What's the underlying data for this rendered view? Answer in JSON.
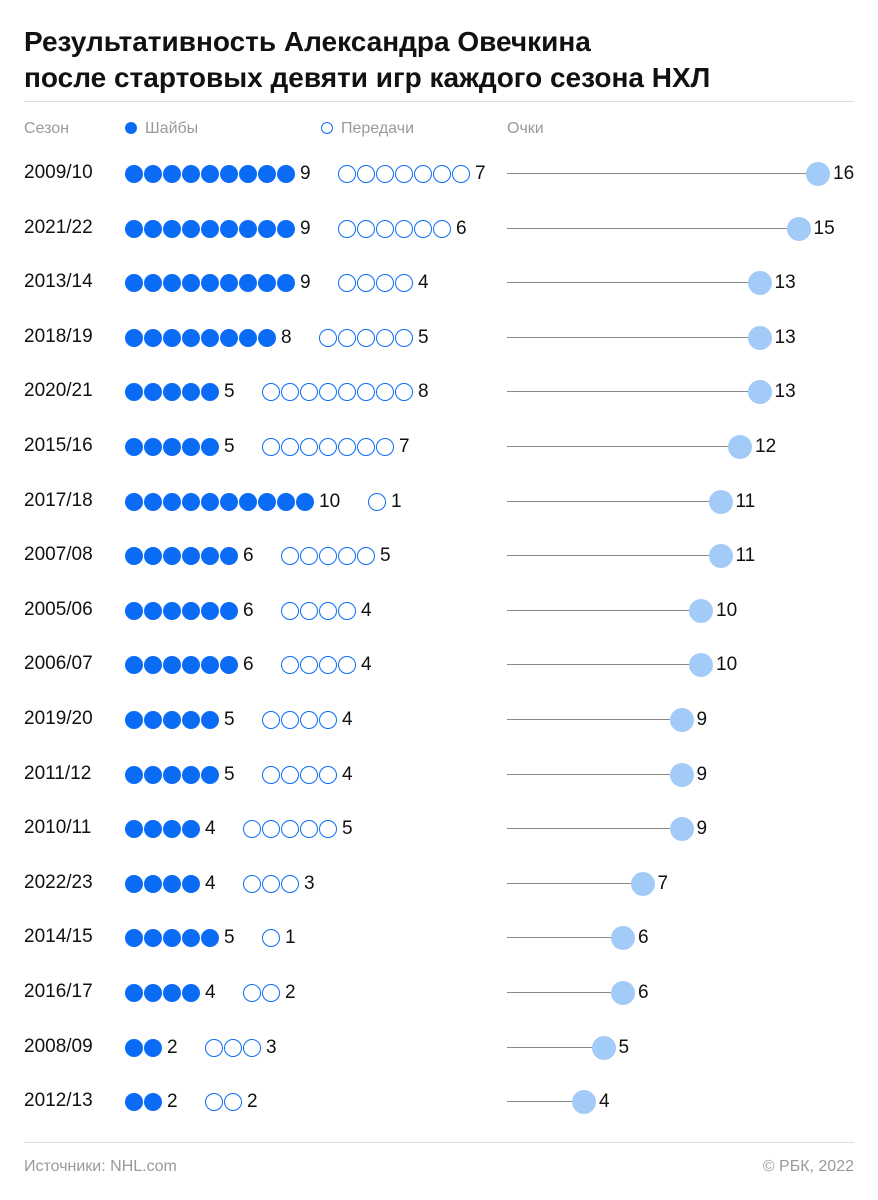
{
  "title_lines": [
    "Результативность Александра Овечкина",
    "после стартовых девяти игр каждого сезона НХЛ"
  ],
  "headers": {
    "season": "Сезон",
    "goals": "Шайбы",
    "assists": "Передачи",
    "points": "Очки"
  },
  "footer": {
    "source": "Источники: NHL.com",
    "copyright": "© РБК, 2022"
  },
  "colors": {
    "goal": "#0a6cf5",
    "assist_outline": "#0a6cf5",
    "point": "#a3cbf7",
    "stem": "#8a8a8a"
  },
  "chart_data": {
    "type": "dot",
    "categories": [
      "2009/10",
      "2021/22",
      "2013/14",
      "2018/19",
      "2020/21",
      "2015/16",
      "2017/18",
      "2007/08",
      "2005/06",
      "2006/07",
      "2019/20",
      "2011/12",
      "2010/11",
      "2022/23",
      "2014/15",
      "2016/17",
      "2008/09",
      "2012/13"
    ],
    "series": [
      {
        "name": "Шайбы",
        "values": [
          9,
          9,
          9,
          8,
          5,
          5,
          10,
          6,
          6,
          6,
          5,
          5,
          4,
          4,
          5,
          4,
          2,
          2
        ]
      },
      {
        "name": "Передачи",
        "values": [
          7,
          6,
          4,
          5,
          8,
          7,
          1,
          5,
          4,
          4,
          4,
          4,
          5,
          3,
          1,
          2,
          3,
          2
        ]
      },
      {
        "name": "Очки",
        "values": [
          16,
          15,
          13,
          13,
          13,
          12,
          11,
          11,
          10,
          10,
          9,
          9,
          9,
          7,
          6,
          6,
          5,
          4
        ]
      }
    ]
  }
}
